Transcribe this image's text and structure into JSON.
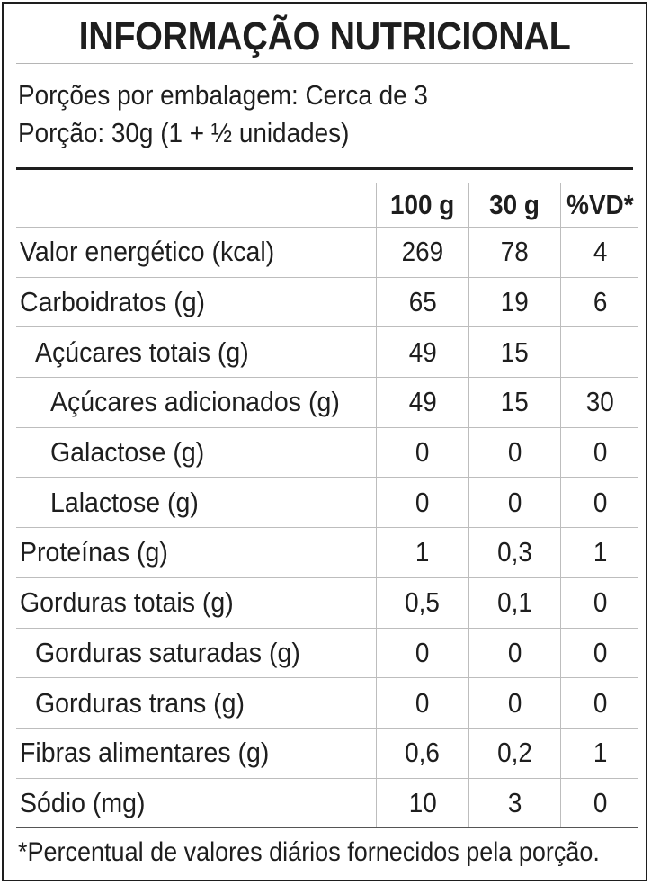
{
  "title": "INFORMAÇÃO NUTRICIONAL",
  "servings_per_package": "Porções por embalagem: Cerca de 3",
  "serving_size": "Porção: 30g (1 + ½ unidades)",
  "table": {
    "headers": [
      "",
      "100 g",
      "30 g",
      "%VD*"
    ],
    "rows": [
      {
        "name": "Valor energético (kcal)",
        "per_100g": "269",
        "per_serving": "78",
        "vd": "4"
      },
      {
        "name": "Carboidratos (g)",
        "per_100g": "65",
        "per_serving": "19",
        "vd": "6"
      },
      {
        "name": "Açúcares totais (g)",
        "per_100g": "49",
        "per_serving": "15",
        "vd": ""
      },
      {
        "name": "Açúcares adicionados (g)",
        "per_100g": "49",
        "per_serving": "15",
        "vd": "30"
      },
      {
        "name": "Galactose (g)",
        "per_100g": "0",
        "per_serving": "0",
        "vd": "0"
      },
      {
        "name": "Lalactose (g)",
        "per_100g": "0",
        "per_serving": "0",
        "vd": "0"
      },
      {
        "name": "Proteínas (g)",
        "per_100g": "1",
        "per_serving": "0,3",
        "vd": "1"
      },
      {
        "name": "Gorduras totais (g)",
        "per_100g": "0,5",
        "per_serving": "0,1",
        "vd": "0"
      },
      {
        "name": "Gorduras saturadas (g)",
        "per_100g": "0",
        "per_serving": "0",
        "vd": "0"
      },
      {
        "name": "Gorduras trans (g)",
        "per_100g": "0",
        "per_serving": "0",
        "vd": "0"
      },
      {
        "name": "Fibras alimentares (g)",
        "per_100g": "0,6",
        "per_serving": "0,2",
        "vd": "1"
      },
      {
        "name": "Sódio (mg)",
        "per_100g": "10",
        "per_serving": "3",
        "vd": "0"
      }
    ]
  },
  "footnote": "*Percentual de valores diários fornecidos pela porção."
}
